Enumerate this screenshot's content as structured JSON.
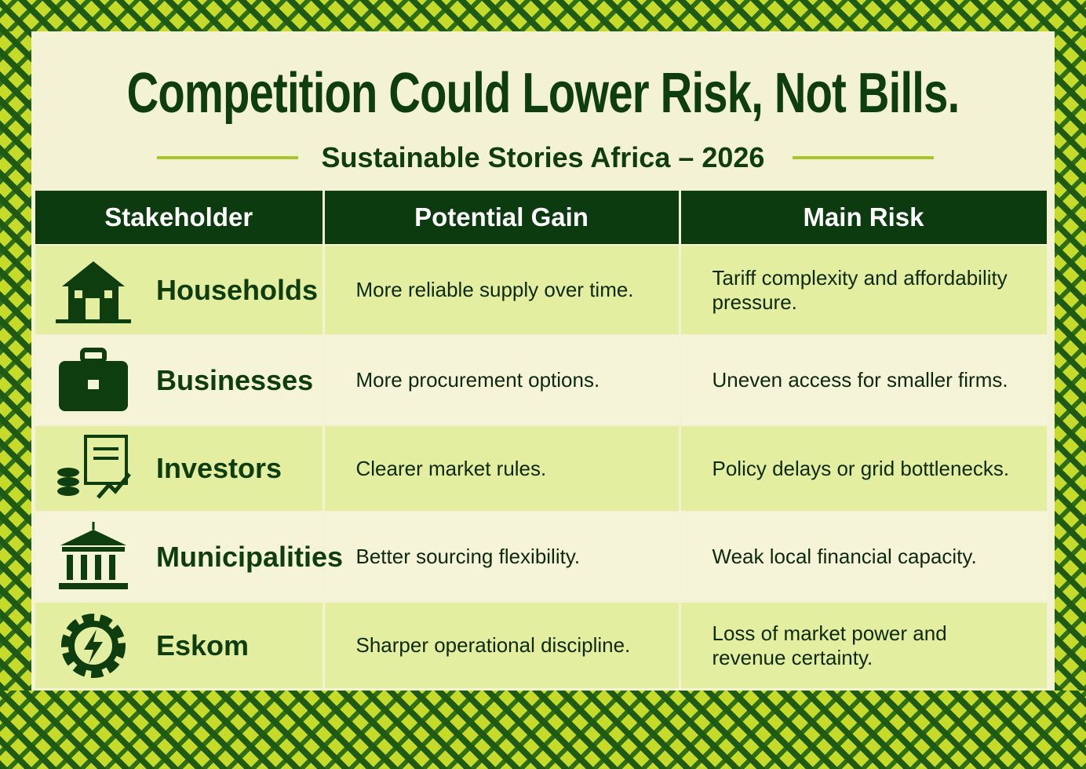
{
  "header": {
    "title": "Competition Could Lower Risk, Not Bills.",
    "subtitle": "Sustainable Stories Africa – 2026"
  },
  "table": {
    "columns": [
      "Stakeholder",
      "Potential Gain",
      "Main Risk"
    ],
    "rows": [
      [
        "Households",
        "More reliable supply over time.",
        "Tariff complexity and affordability pressure."
      ],
      [
        "Businesses",
        "More procurement options.",
        "Uneven access for smaller firms."
      ],
      [
        "Investors",
        "Clearer market rules.",
        "Policy delays or grid bottlenecks."
      ],
      [
        "Municipalities",
        "Better sourcing flexibility.",
        "Weak local financial capacity."
      ],
      [
        "Eskom",
        "Sharper operational discipline.",
        "Loss of market power and revenue certainty."
      ]
    ]
  }
}
